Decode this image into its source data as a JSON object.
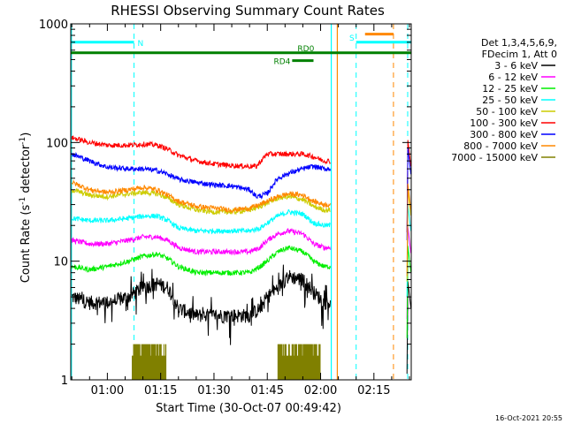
{
  "chart_data": {
    "type": "line",
    "title": "RHESSI Observing Summary Count Rates",
    "xlabel": "Start Time (30-Oct-07 00:49:42)",
    "ylabel_main": "Count Rate (s",
    "ylabel_sup": "-1",
    "ylabel_mid": " detector",
    "ylabel_sup2": "-1",
    "ylabel_end": ")",
    "timestamp": "16-Oct-2021 20:55",
    "x_axis": {
      "start_min": 49.7,
      "end_min": 145.5,
      "ticks": [
        {
          "min": 60,
          "label": "01:00"
        },
        {
          "min": 75,
          "label": "01:15"
        },
        {
          "min": 90,
          "label": "01:30"
        },
        {
          "min": 105,
          "label": "01:45"
        },
        {
          "min": 120,
          "label": "02:00"
        },
        {
          "min": 135,
          "label": "02:15"
        }
      ]
    },
    "y_axis": {
      "scale": "log",
      "min": 1,
      "max": 1000,
      "ticks": [
        {
          "v": 1,
          "label": "1"
        },
        {
          "v": 10,
          "label": "10"
        },
        {
          "v": 100,
          "label": "100"
        },
        {
          "v": 1000,
          "label": "1000"
        }
      ]
    },
    "legend": {
      "placement": "top-right",
      "header": [
        "Det 1,3,4,5,6,9,",
        "FDecim 1, Att 0"
      ]
    },
    "series": [
      {
        "name": "3 - 6 keV",
        "color": "#000000",
        "x": [
          50,
          55,
          60,
          66,
          70,
          74,
          77,
          80,
          85,
          90,
          95,
          100,
          103,
          105,
          108,
          111,
          115,
          118,
          121
        ],
        "y": [
          5,
          4.5,
          4.5,
          5,
          6,
          6.5,
          6,
          4,
          3.5,
          3.5,
          3.5,
          3.5,
          4,
          5,
          6,
          7.5,
          7,
          5.5,
          4.5
        ]
      },
      {
        "name": "6 - 12 keV",
        "color": "#ff00ff",
        "x": [
          50,
          55,
          60,
          66,
          70,
          74,
          77,
          80,
          85,
          90,
          95,
          100,
          103,
          105,
          108,
          111,
          115,
          118,
          121
        ],
        "y": [
          15,
          14,
          14,
          15,
          16,
          16,
          15,
          13,
          12,
          12,
          12,
          12,
          13,
          15,
          17,
          18,
          17,
          14,
          13
        ]
      },
      {
        "name": "12 - 25 keV",
        "color": "#00ee00",
        "x": [
          50,
          55,
          60,
          66,
          70,
          74,
          77,
          80,
          85,
          90,
          95,
          100,
          103,
          105,
          108,
          111,
          115,
          118,
          121
        ],
        "y": [
          9,
          8.5,
          9,
          10,
          11,
          11.5,
          10.5,
          9,
          8,
          8,
          8,
          8,
          9,
          10,
          12,
          13,
          12,
          10,
          9
        ]
      },
      {
        "name": "25 - 50 keV",
        "color": "#00ffff",
        "x": [
          50,
          55,
          60,
          66,
          70,
          74,
          77,
          80,
          85,
          90,
          95,
          100,
          103,
          105,
          108,
          111,
          115,
          118,
          121
        ],
        "y": [
          23,
          22,
          22,
          23,
          24,
          24,
          22,
          19,
          18,
          18,
          18,
          18,
          19,
          21,
          24,
          26,
          25,
          21,
          20
        ]
      },
      {
        "name": "50 - 100 keV",
        "color": "#cccc00",
        "x": [
          50,
          55,
          60,
          66,
          70,
          74,
          77,
          80,
          85,
          90,
          95,
          100,
          103,
          105,
          108,
          111,
          115,
          118,
          121
        ],
        "y": [
          40,
          36,
          35,
          37,
          38,
          37,
          34,
          30,
          27,
          26,
          26,
          27,
          29,
          31,
          34,
          35,
          33,
          29,
          27
        ]
      },
      {
        "name": "100 - 300 keV",
        "color": "#ff0000",
        "x": [
          50,
          55,
          60,
          66,
          70,
          74,
          77,
          80,
          85,
          90,
          95,
          100,
          102,
          105,
          108,
          111,
          115,
          118,
          121
        ],
        "y": [
          110,
          100,
          95,
          95,
          97,
          95,
          88,
          78,
          70,
          66,
          64,
          63,
          63,
          80,
          80,
          80,
          80,
          76,
          70
        ]
      },
      {
        "name": "300 - 800 keV",
        "color": "#0000ff",
        "x": [
          50,
          55,
          60,
          66,
          70,
          74,
          77,
          80,
          85,
          90,
          95,
          100,
          102,
          105,
          108,
          111,
          115,
          118,
          121
        ],
        "y": [
          80,
          70,
          62,
          60,
          60,
          58,
          54,
          49,
          46,
          44,
          43,
          40,
          35,
          37,
          50,
          55,
          60,
          63,
          60
        ]
      },
      {
        "name": "800 - 7000 keV",
        "color": "#ff8800",
        "x": [
          50,
          55,
          60,
          66,
          70,
          74,
          77,
          80,
          85,
          90,
          95,
          100,
          103,
          105,
          108,
          111,
          115,
          118,
          121
        ],
        "y": [
          46,
          40,
          38,
          40,
          42,
          40,
          36,
          32,
          29,
          28,
          27,
          28,
          30,
          32,
          35,
          37,
          36,
          32,
          30
        ]
      },
      {
        "name": "7000 - 15000 keV",
        "color": "#808000",
        "x": [
          50,
          55,
          60,
          66,
          70,
          74,
          77,
          80,
          85,
          90,
          95,
          100,
          103,
          105,
          108,
          111,
          115,
          118,
          121
        ],
        "y": [
          1,
          1,
          1,
          1,
          1,
          1,
          1,
          1,
          1,
          1,
          1,
          1,
          1,
          1,
          1,
          1,
          1,
          1,
          1
        ]
      }
    ],
    "annotations": {
      "N": {
        "label": "N",
        "x_start": 49.7,
        "x_end": 67.5,
        "y": 700,
        "color": "#00ffff"
      },
      "S": {
        "label": "S",
        "x_start": 130,
        "x_end": 145.5,
        "y": 700,
        "color": "#00ffff"
      },
      "S_orange": {
        "x_start": 132.5,
        "x_end": 140.5,
        "y": 820,
        "color": "#ff8800"
      },
      "RD0": {
        "label": "RD0",
        "x_start": 49.7,
        "x_end": 145.5,
        "y": 570,
        "color": "#008000"
      },
      "RD4": {
        "label": "RD4",
        "x_start": 112,
        "x_end": 118,
        "y": 490,
        "color": "#008000"
      },
      "cyan_dashed": [
        67.5,
        130,
        144.5
      ],
      "cyan_solid": [
        49.9,
        123.0
      ],
      "orange_solid": [
        124.7
      ],
      "orange_dashed": [
        140.5
      ],
      "olive_blocks": [
        {
          "x_start": 67,
          "x_end": 76.5
        },
        {
          "x_start": 108,
          "x_end": 120
        }
      ]
    }
  }
}
